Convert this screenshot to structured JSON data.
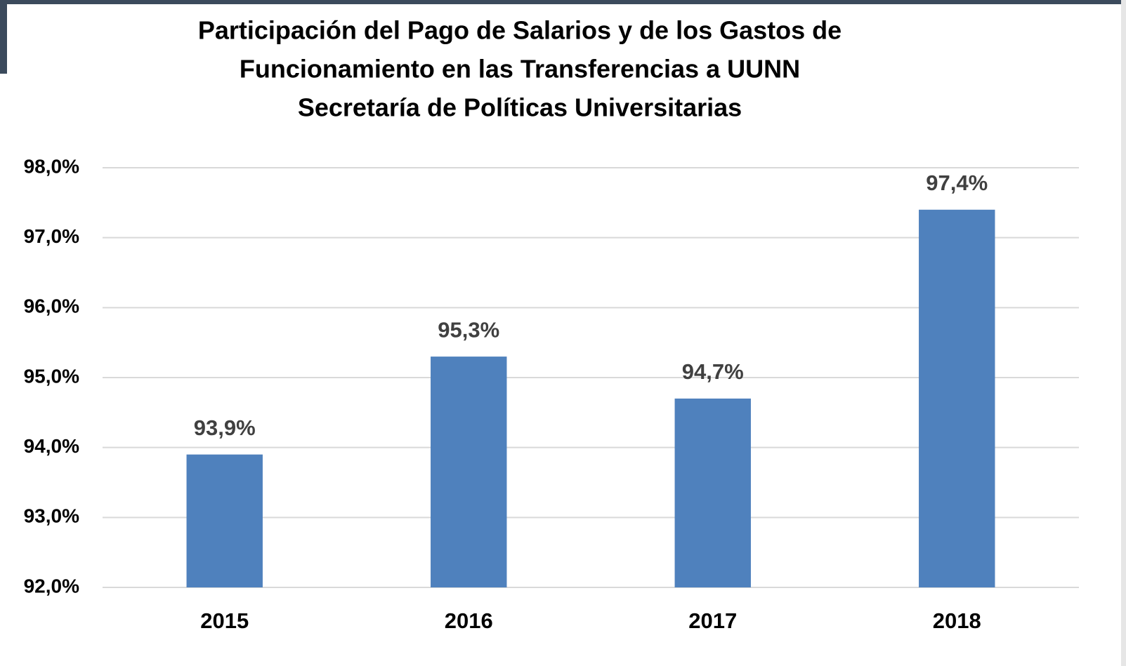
{
  "chart_data": {
    "type": "bar",
    "title": [
      "Participación del Pago de Salarios y de los Gastos de",
      "Funcionamiento en las Transferencias a UUNN",
      "Secretaría de Políticas Universitarias"
    ],
    "categories": [
      "2015",
      "2016",
      "2017",
      "2018"
    ],
    "values": [
      93.9,
      95.3,
      94.7,
      97.4
    ],
    "value_labels": [
      "93,9%",
      "95,3%",
      "94,7%",
      "97,4%"
    ],
    "color": "#4f81bd",
    "ylim": [
      92,
      98
    ],
    "yticks": [
      {
        "value": 92,
        "label": "92,0%"
      },
      {
        "value": 93,
        "label": "93,0%"
      },
      {
        "value": 94,
        "label": "94,0%"
      },
      {
        "value": 95,
        "label": "95,0%"
      },
      {
        "value": 96,
        "label": "96,0%"
      },
      {
        "value": 97,
        "label": "97,0%"
      },
      {
        "value": 98,
        "label": "98,0%"
      }
    ],
    "grid": true
  }
}
